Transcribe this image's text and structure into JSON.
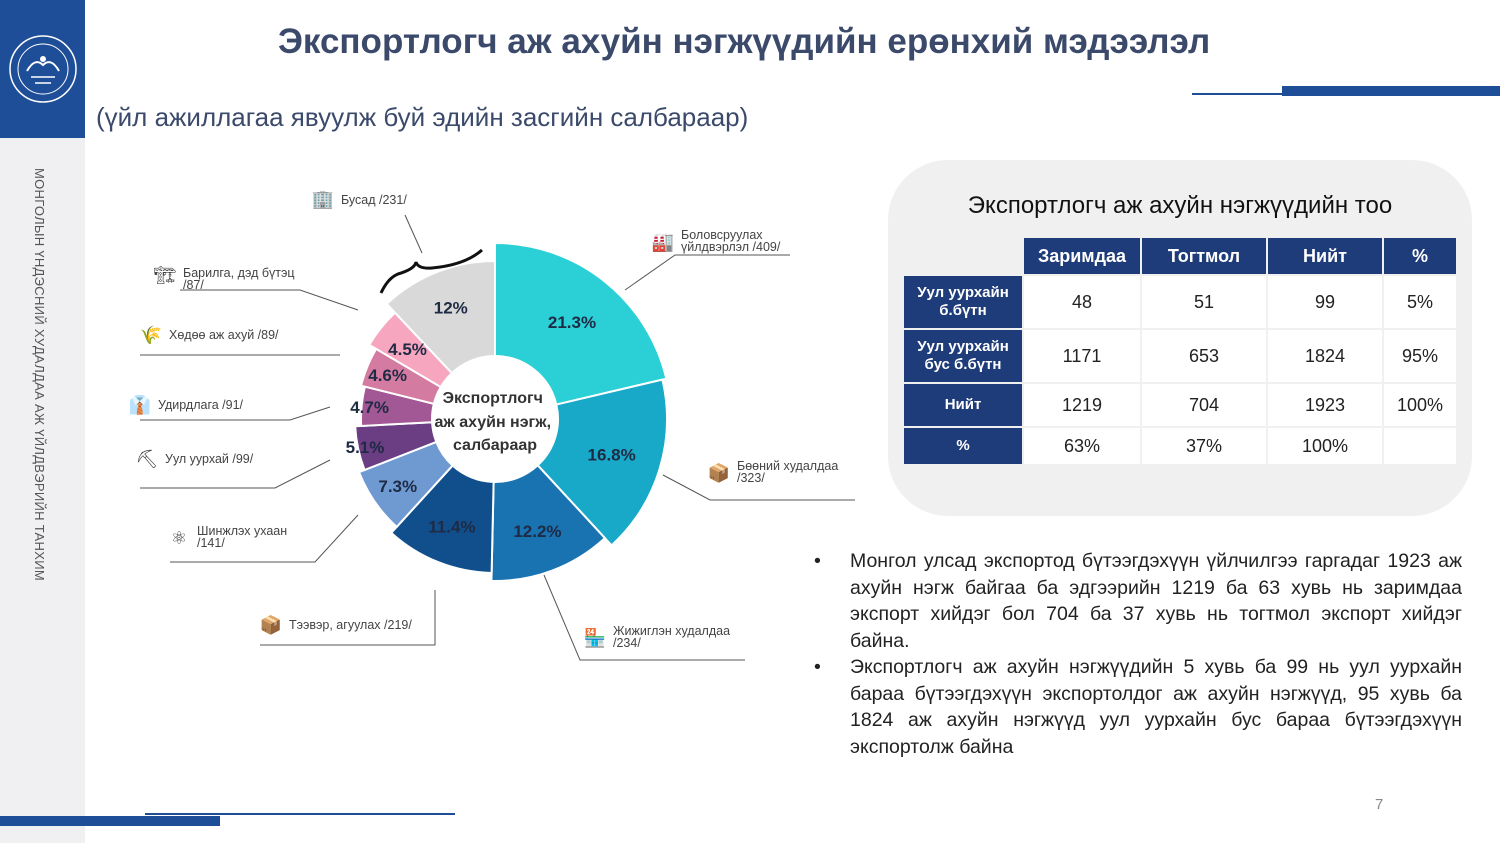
{
  "sidebar": {
    "vertical_text": "МОНГОЛЫН ҮНДЭСНИЙ ХУДАЛДАА АЖ ҮЙЛДВЭРИЙН ТАНХИМ"
  },
  "header": {
    "title": "Экспортлогч аж ахуйн нэгжүүдийн ерөнхий мэдээлэл",
    "subtitle": "(үйл ажиллагаа явуулж буй эдийн засгийн салбараар)"
  },
  "colors": {
    "brand_blue": "#1f4e99",
    "table_header": "#1f3c7a"
  },
  "chart_data": {
    "type": "pie",
    "center_label": [
      "Экспортлогч",
      "аж ахуйн нэгж,",
      "салбараар"
    ],
    "slices": [
      {
        "name": "Боловсруулах үйлдвэрлэл",
        "count": 409,
        "value": 21.3,
        "label": "21.3%",
        "color": "#2bd0d6"
      },
      {
        "name": "Бөөний худалдаа",
        "count": 323,
        "value": 16.8,
        "label": "16.8%",
        "color": "#18a9c9"
      },
      {
        "name": "Жижиглэн худалдаа",
        "count": 234,
        "value": 12.2,
        "label": "12.2%",
        "color": "#1a73b1"
      },
      {
        "name": "Тээвэр, агуулах",
        "count": 219,
        "value": 11.4,
        "label": "11.4%",
        "color": "#114f8c"
      },
      {
        "name": "Шинжлэх ухаан",
        "count": 141,
        "value": 7.3,
        "label": "7.3%",
        "color": "#6f9ad1"
      },
      {
        "name": "Уул уурхай",
        "count": 99,
        "value": 5.1,
        "label": "5.1%",
        "color": "#6b3d83"
      },
      {
        "name": "Удирдлага",
        "count": 91,
        "value": 4.7,
        "label": "4.7%",
        "color": "#a25894"
      },
      {
        "name": "Хөдөө аж ахуй",
        "count": 89,
        "value": 4.6,
        "label": "4.6%",
        "color": "#d47ba2"
      },
      {
        "name": "Барилга, дэд бүтэц",
        "count": 87,
        "value": 4.5,
        "label": "4.5%",
        "color": "#f6a6bf"
      },
      {
        "name": "Бусад",
        "count": 231,
        "value": 12.0,
        "label": "12%",
        "color": "#d9d9d9"
      }
    ]
  },
  "callouts": {
    "manufacturing": {
      "line1": "Боловсруулах",
      "line2": "үйлдвэрлэл /409/",
      "icon": "factory-icon",
      "glyph": "🏭"
    },
    "wholesale": {
      "line1": "Бөөний худалдаа",
      "line2": "/323/",
      "icon": "box-icon",
      "glyph": "📦"
    },
    "retail": {
      "line1": "Жижиглэн худалдаа",
      "line2": "/234/",
      "icon": "shop-icon",
      "glyph": "🏪"
    },
    "transport": {
      "line1": "Тээвэр, агуулах /219/",
      "line2": "",
      "icon": "cargo-icon",
      "glyph": "📦"
    },
    "science": {
      "line1": "Шинжлэх ухаан",
      "line2": "/141/",
      "icon": "atom-icon",
      "glyph": "⚛"
    },
    "mining": {
      "line1": "Уул уурхай /99/",
      "line2": "",
      "icon": "miner-icon",
      "glyph": "⛏"
    },
    "management": {
      "line1": "Удирдлага /91/",
      "line2": "",
      "icon": "manager-icon",
      "glyph": "👔"
    },
    "agriculture": {
      "line1": "Хөдөө аж ахуй /89/",
      "line2": "",
      "icon": "wheat-icon",
      "glyph": "🌾"
    },
    "construction": {
      "line1": "Барилга, дэд бүтэц",
      "line2": "/87/",
      "icon": "crane-icon",
      "glyph": "🏗"
    },
    "other": {
      "line1": "Бусад /231/",
      "line2": "",
      "icon": "buildings-icon",
      "glyph": "🏢"
    }
  },
  "table": {
    "title": "Экспортлогч аж ахуйн нэгжүүдийн тоо",
    "columns": [
      "Заримдаа",
      "Тогтмол",
      "Нийт",
      "%"
    ],
    "rows": [
      {
        "label_1": "Уул уурхайн",
        "label_2": "б.бүтн",
        "cells": [
          "48",
          "51",
          "99",
          "5%"
        ]
      },
      {
        "label_1": "Уул уурхайн",
        "label_2": "бус б.бүтн",
        "cells": [
          "1171",
          "653",
          "1824",
          "95%"
        ]
      },
      {
        "label_1": "Нийт",
        "label_2": "",
        "cells": [
          "1219",
          "704",
          "1923",
          "100%"
        ]
      },
      {
        "label_1": "%",
        "label_2": "",
        "cells": [
          "63%",
          "37%",
          "100%",
          ""
        ]
      }
    ]
  },
  "bullets": [
    "Монгол улсад экспортод бүтээгдэхүүн үйлчилгээ гаргадаг 1923 аж ахуйн нэгж байгаа ба эдгээрийн 1219 ба 63 хувь нь заримдаа экспорт хийдэг бол 704 ба 37 хувь нь тогтмол экспорт хийдэг байна.",
    "Экспортлогч аж ахуйн нэгжүүдийн 5 хувь ба 99 нь уул уурхайн бараа бүтээгдэхүүн экспортолдог аж ахуйн нэгжүүд, 95 хувь ба 1824 аж ахуйн нэгжүүд уул уурхайн бус бараа бүтээгдэхүүн экспортолж байна"
  ],
  "footer": {
    "page_number": "7"
  }
}
